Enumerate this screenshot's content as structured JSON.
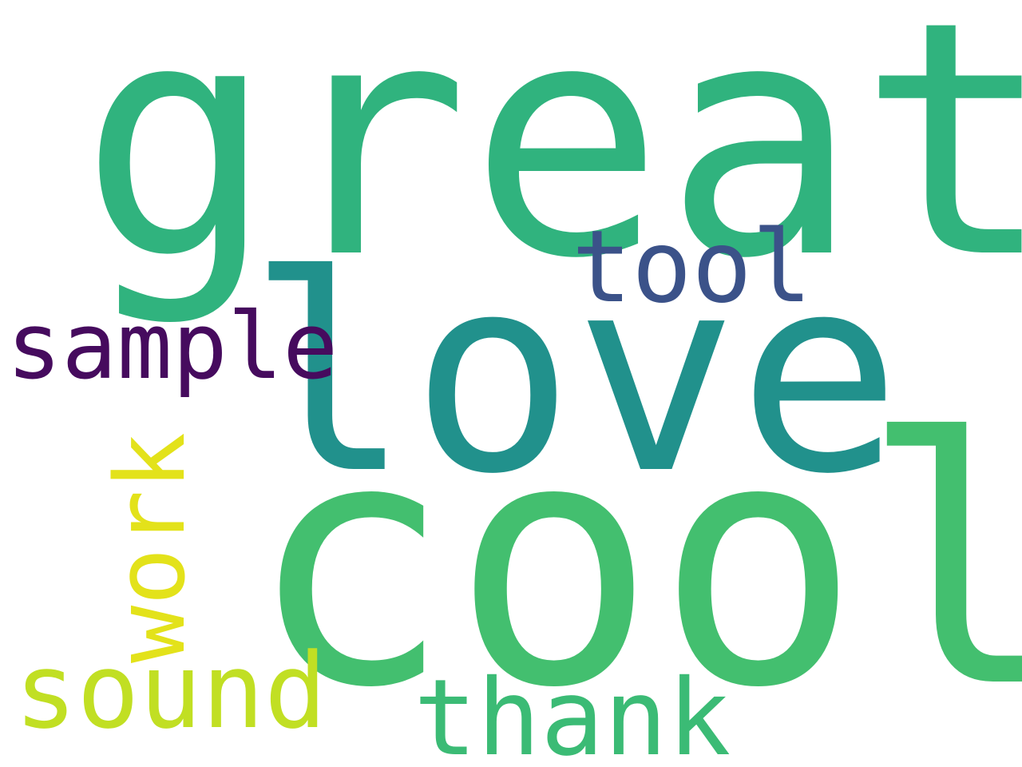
{
  "words": [
    {
      "id": "great",
      "text": "great",
      "color": "#30b37e"
    },
    {
      "id": "love",
      "text": "love",
      "color": "#21918c"
    },
    {
      "id": "cool",
      "text": "cool",
      "color": "#43bf6f"
    },
    {
      "id": "tool",
      "text": "tool",
      "color": "#3b5289"
    },
    {
      "id": "sample",
      "text": "sample",
      "color": "#460b5e"
    },
    {
      "id": "work",
      "text": "work",
      "color": "#e3e21a"
    },
    {
      "id": "sound",
      "text": "sound",
      "color": "#c1df23"
    },
    {
      "id": "thank",
      "text": "thank",
      "color": "#3bbb75"
    }
  ]
}
